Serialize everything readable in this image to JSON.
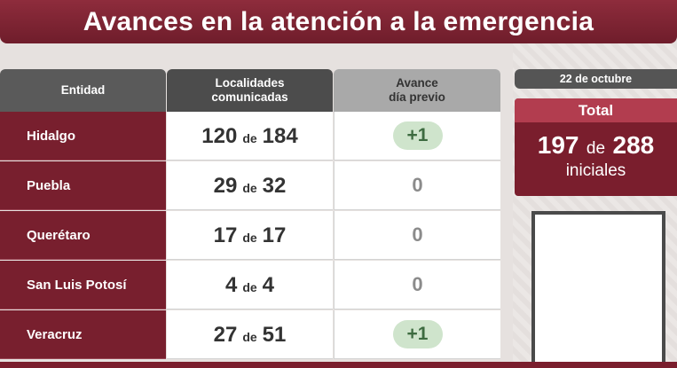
{
  "title": "Avances en la atención a la emergencia",
  "table": {
    "headers": {
      "entidad": "Entidad",
      "localidades": "Localidades\ncomunicadas",
      "avance": "Avance\ndía previo"
    },
    "rows": [
      {
        "entidad": "Hidalgo",
        "comunicadas": "120",
        "de": "de",
        "total": "184",
        "avance": "+1",
        "positive": true
      },
      {
        "entidad": "Puebla",
        "comunicadas": "29",
        "de": "de",
        "total": "32",
        "avance": "0",
        "positive": false
      },
      {
        "entidad": "Querétaro",
        "comunicadas": "17",
        "de": "de",
        "total": "17",
        "avance": "0",
        "positive": false
      },
      {
        "entidad": "San Luis Potosí",
        "comunicadas": "4",
        "de": "de",
        "total": "4",
        "avance": "0",
        "positive": false
      },
      {
        "entidad": "Veracruz",
        "comunicadas": "27",
        "de": "de",
        "total": "51",
        "avance": "+1",
        "positive": true
      }
    ]
  },
  "side": {
    "date": "22 de octubre",
    "total_label": "Total",
    "total_value": "197",
    "total_de": "de",
    "total_of": "288",
    "total_suffix": "iniciales"
  },
  "colors": {
    "maroon": "#781f2e",
    "header_dark": "#4c4c4c",
    "pill_green": "#cfe4cc"
  }
}
